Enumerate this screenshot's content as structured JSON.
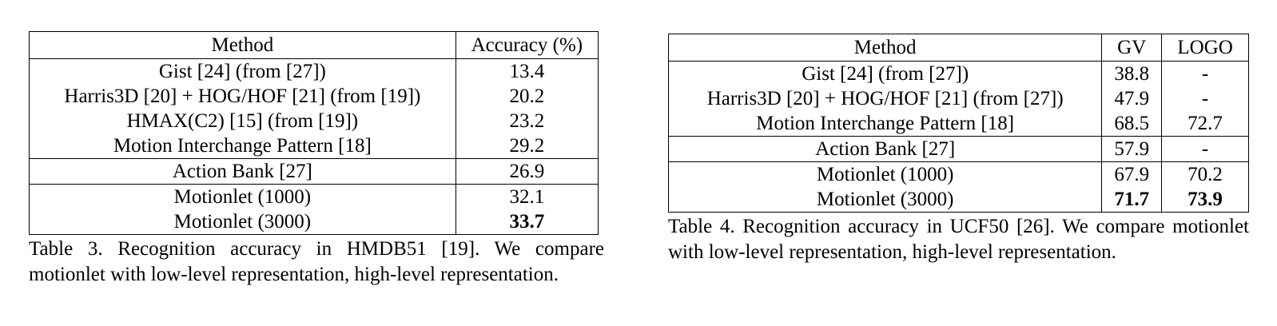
{
  "table3": {
    "headers": [
      "Method",
      "Accuracy (%)"
    ],
    "rows": [
      {
        "method": "Gist [24] (from [27])",
        "accuracy": "13.4"
      },
      {
        "method": "Harris3D [20] + HOG/HOF [21] (from [19])",
        "accuracy": "20.2"
      },
      {
        "method": "HMAX(C2) [15] (from [19])",
        "accuracy": "23.2"
      },
      {
        "method": "Motion Interchange Pattern [18]",
        "accuracy": "29.2"
      },
      {
        "method": "Action Bank [27]",
        "accuracy": "26.9"
      },
      {
        "method": "Motionlet (1000)",
        "accuracy": "32.1"
      },
      {
        "method": "Motionlet (3000)",
        "accuracy": "33.7"
      }
    ],
    "caption": "Table 3. Recognition accuracy in HMDB51 [19].  We compare motionlet with low-level representation, high-level representation."
  },
  "table4": {
    "headers": [
      "Method",
      "GV",
      "LOGO"
    ],
    "rows": [
      {
        "method": "Gist [24] (from [27])",
        "gv": "38.8",
        "logo": "-"
      },
      {
        "method": "Harris3D [20] + HOG/HOF [21] (from [27])",
        "gv": "47.9",
        "logo": "-"
      },
      {
        "method": "Motion Interchange Pattern [18]",
        "gv": "68.5",
        "logo": "72.7"
      },
      {
        "method": "Action Bank [27]",
        "gv": "57.9",
        "logo": "-"
      },
      {
        "method": "Motionlet (1000)",
        "gv": "67.9",
        "logo": "70.2"
      },
      {
        "method": "Motionlet (3000)",
        "gv": "71.7",
        "logo": "73.9"
      }
    ],
    "caption": "Table 4. Recognition accuracy in UCF50 [26].  We compare motionlet with low-level representation, high-level representation."
  }
}
